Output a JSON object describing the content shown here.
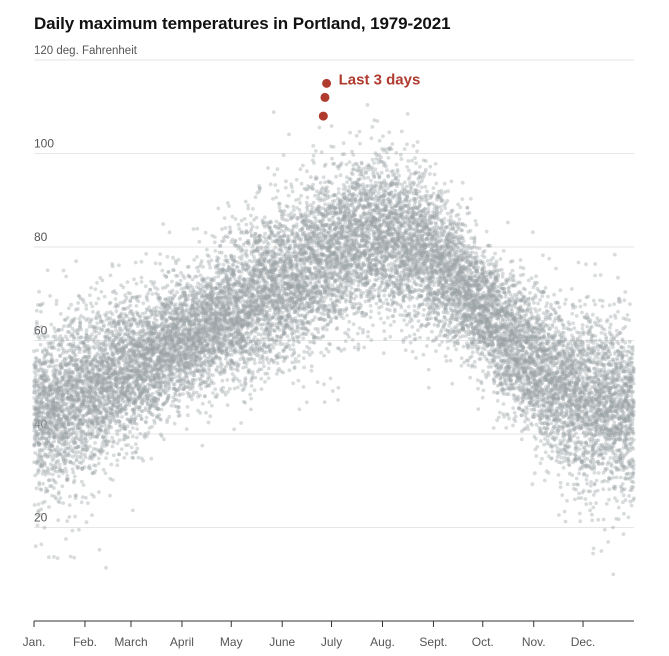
{
  "chart_data": {
    "type": "scatter",
    "title": "Daily maximum temperatures in Portland, 1979-2021",
    "ylabel": "120 deg. Fahrenheit",
    "ylim": [
      0,
      120
    ],
    "xlim": [
      0,
      365
    ],
    "grid": true,
    "y_ticks": [
      {
        "value": 120,
        "label": ""
      },
      {
        "value": 100,
        "label": "100"
      },
      {
        "value": 80,
        "label": "80"
      },
      {
        "value": 60,
        "label": "60"
      },
      {
        "value": 40,
        "label": "40"
      },
      {
        "value": 20,
        "label": "20"
      }
    ],
    "x_ticks": [
      {
        "day": 0,
        "label": "Jan."
      },
      {
        "day": 31,
        "label": "Feb."
      },
      {
        "day": 59,
        "label": "March"
      },
      {
        "day": 90,
        "label": "April"
      },
      {
        "day": 120,
        "label": "May"
      },
      {
        "day": 151,
        "label": "June"
      },
      {
        "day": 181,
        "label": "July"
      },
      {
        "day": 212,
        "label": "Aug."
      },
      {
        "day": 243,
        "label": "Sept."
      },
      {
        "day": 273,
        "label": "Oct."
      },
      {
        "day": 304,
        "label": "Nov."
      },
      {
        "day": 334,
        "label": "Dec."
      }
    ],
    "series": [
      {
        "name": "",
        "color": "#9aa2a6",
        "description_of_distribution": "one dot per day per year",
        "mean_by_day": [
          {
            "day": 0,
            "value": 46
          },
          {
            "day": 15,
            "value": 46
          },
          {
            "day": 31,
            "value": 49
          },
          {
            "day": 59,
            "value": 54
          },
          {
            "day": 90,
            "value": 60
          },
          {
            "day": 120,
            "value": 66
          },
          {
            "day": 151,
            "value": 72
          },
          {
            "day": 181,
            "value": 78
          },
          {
            "day": 196,
            "value": 82
          },
          {
            "day": 212,
            "value": 82
          },
          {
            "day": 227,
            "value": 81
          },
          {
            "day": 243,
            "value": 77
          },
          {
            "day": 258,
            "value": 72
          },
          {
            "day": 273,
            "value": 66
          },
          {
            "day": 288,
            "value": 60
          },
          {
            "day": 304,
            "value": 55
          },
          {
            "day": 319,
            "value": 50
          },
          {
            "day": 334,
            "value": 48
          },
          {
            "day": 365,
            "value": 45
          }
        ]
      },
      {
        "name": "Last 3 days",
        "color": "#b03a2e",
        "points": [
          {
            "day": 176,
            "value": 108
          },
          {
            "day": 177,
            "value": 112
          },
          {
            "day": 178,
            "value": 115
          }
        ]
      }
    ],
    "annotations": [
      {
        "text": "Last 3 days",
        "color": "#b03a2e"
      }
    ]
  }
}
